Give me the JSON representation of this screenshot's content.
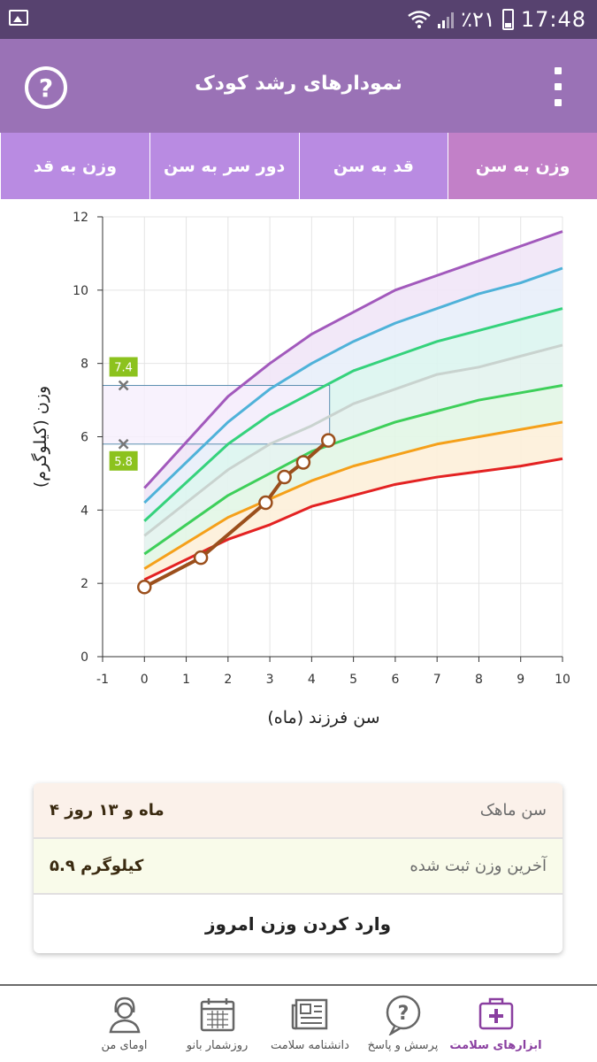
{
  "status": {
    "battery": "٪۲۱",
    "time": "17:48"
  },
  "header": {
    "title": "نمودارهای رشد کودک"
  },
  "tabs": [
    "وزن به سن",
    "قد به سن",
    "دور سر به سن",
    "وزن به قد"
  ],
  "chart_data": {
    "type": "line",
    "xlabel": "سن فرزند (ماه)",
    "ylabel": "وزن (کیلوگرم)",
    "xlim": [
      -1,
      10
    ],
    "ylim": [
      0,
      12
    ],
    "x_ticks": [
      -1,
      0,
      1,
      2,
      3,
      4,
      5,
      6,
      7,
      8,
      9,
      10
    ],
    "y_ticks": [
      0,
      2,
      4,
      6,
      8,
      10,
      12
    ],
    "grid": true,
    "x": [
      0,
      2,
      3,
      4,
      5,
      6,
      7,
      8,
      9,
      10
    ],
    "percentiles": [
      {
        "color": "#e32222",
        "values": [
          2.1,
          3.2,
          3.6,
          4.1,
          4.4,
          4.7,
          4.9,
          5.05,
          5.2,
          5.4
        ],
        "fill": "#fbe0dc"
      },
      {
        "color": "#f5a01a",
        "values": [
          2.4,
          3.8,
          4.3,
          4.8,
          5.2,
          5.5,
          5.8,
          6.0,
          6.2,
          6.4
        ],
        "fill": "#fdf0d9"
      },
      {
        "color": "#3ecf5a",
        "values": [
          2.8,
          4.4,
          5.0,
          5.6,
          6.0,
          6.4,
          6.7,
          7.0,
          7.2,
          7.4
        ],
        "fill": "#e2f6e5"
      },
      {
        "color": "#c9d3cf",
        "values": [
          3.3,
          5.1,
          5.8,
          6.3,
          6.9,
          7.3,
          7.7,
          7.9,
          8.2,
          8.5
        ],
        "fill": "#e3f3ee"
      },
      {
        "color": "#35d27c",
        "values": [
          3.7,
          5.8,
          6.6,
          7.2,
          7.8,
          8.2,
          8.6,
          8.9,
          9.2,
          9.5
        ],
        "fill": "#dcf5f0"
      },
      {
        "color": "#4fb2d9",
        "values": [
          4.2,
          6.4,
          7.3,
          8.0,
          8.6,
          9.1,
          9.5,
          9.9,
          10.2,
          10.6
        ],
        "fill": "#e8eef9"
      },
      {
        "color": "#a259bc",
        "values": [
          4.6,
          7.1,
          8.0,
          8.8,
          9.4,
          10.0,
          10.4,
          10.8,
          11.2,
          11.6
        ],
        "fill": "#f1e6f7"
      }
    ],
    "child_series": {
      "color": "#9b4f1c",
      "points": [
        [
          0,
          1.9
        ],
        [
          1.35,
          2.7
        ],
        [
          2.9,
          4.2
        ],
        [
          3.35,
          4.9
        ],
        [
          3.8,
          5.3
        ],
        [
          4.4,
          5.9
        ]
      ]
    },
    "range_box": {
      "x": [
        -1,
        4.43
      ],
      "y": [
        5.8,
        7.4
      ],
      "labels": [
        "7.4",
        "5.8"
      ],
      "marker_x": -0.5
    }
  },
  "info": {
    "age_label": "سن ماهک",
    "age_value": "۴ ماه و ۱۳ روز",
    "weight_label": "آخرین وزن ثبت شده",
    "weight_value": "۵.۹ کیلوگرم",
    "enter_button": "وارد کردن وزن امروز"
  },
  "nav": [
    {
      "label": "ابزارهای سلامت",
      "icon": "medical-kit-icon",
      "active": true
    },
    {
      "label": "پرسش و پاسخ",
      "icon": "question-bubble-icon",
      "active": false
    },
    {
      "label": "دانشنامه سلامت",
      "icon": "newspaper-icon",
      "active": false
    },
    {
      "label": "روزشمار بانو",
      "icon": "calendar-icon",
      "active": false
    },
    {
      "label": "اومای من",
      "icon": "user-avatar-icon",
      "active": false
    }
  ]
}
